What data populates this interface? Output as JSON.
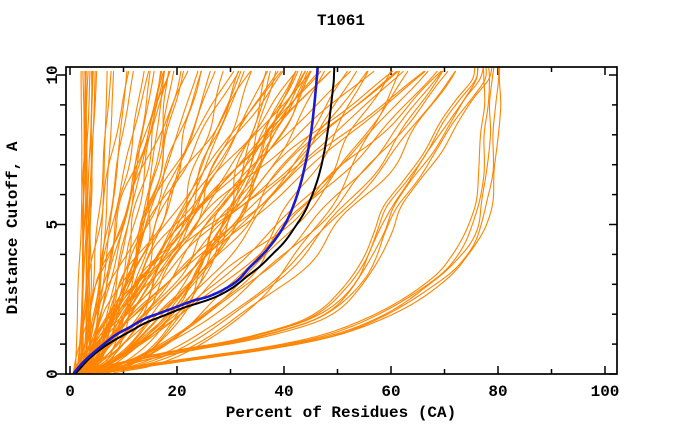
{
  "title": "T1061",
  "chart_data": {
    "type": "line",
    "title": "T1061",
    "xlabel": "Percent of Residues (CA)",
    "ylabel": "Distance Cutoff, A",
    "xlim": [
      0,
      102.3
    ],
    "ylim": [
      0,
      10.27
    ],
    "grid": false,
    "legend": "none",
    "x_axis": {
      "major_ticks": [
        0,
        20,
        40,
        60,
        80,
        100
      ],
      "major_labels": [
        "0",
        "20",
        "40",
        "60",
        "80",
        "100"
      ],
      "minor_ticks": [
        10,
        30,
        50,
        70,
        90
      ]
    },
    "y_axis": {
      "major_ticks": [
        0,
        5,
        10
      ],
      "major_labels": [
        "0",
        "5",
        "10"
      ],
      "minor_ticks": [
        1,
        2,
        3,
        4,
        6,
        7,
        8,
        9
      ]
    },
    "colors": {
      "ensemble": "#ff8400",
      "blue": "#1a1ad1",
      "black": "#000000",
      "frame": "#000000",
      "background": "#ffffff",
      "text": "#000000"
    },
    "series": [
      {
        "name": "black_highlight_model",
        "color": "#000000",
        "width": 2,
        "points": [
          [
            1.2,
            0.05
          ],
          [
            2.2,
            0.25
          ],
          [
            3.5,
            0.5
          ],
          [
            5.5,
            0.8
          ],
          [
            8,
            1.1
          ],
          [
            11,
            1.4
          ],
          [
            14,
            1.7
          ],
          [
            17.5,
            1.95
          ],
          [
            21,
            2.2
          ],
          [
            24.5,
            2.4
          ],
          [
            27.5,
            2.6
          ],
          [
            30.5,
            2.9
          ],
          [
            33,
            3.25
          ],
          [
            35.5,
            3.6
          ],
          [
            37.8,
            4.0
          ],
          [
            40,
            4.4
          ],
          [
            42,
            4.9
          ],
          [
            43.8,
            5.4
          ],
          [
            45.3,
            6.0
          ],
          [
            46.6,
            6.7
          ],
          [
            47.6,
            7.5
          ],
          [
            48.4,
            8.4
          ],
          [
            49,
            9.3
          ],
          [
            49.3,
            9.83
          ],
          [
            49.4,
            10.27
          ]
        ]
      },
      {
        "name": "blue_highlight_model",
        "color": "#1a1ad1",
        "width": 2.6,
        "points": [
          [
            0.8,
            0.05
          ],
          [
            1.5,
            0.2
          ],
          [
            2.5,
            0.4
          ],
          [
            4,
            0.65
          ],
          [
            6,
            0.95
          ],
          [
            8.5,
            1.3
          ],
          [
            11,
            1.55
          ],
          [
            14,
            1.85
          ],
          [
            17,
            2.05
          ],
          [
            20,
            2.25
          ],
          [
            23,
            2.45
          ],
          [
            26,
            2.6
          ],
          [
            29,
            2.85
          ],
          [
            31.5,
            3.15
          ],
          [
            33.5,
            3.55
          ],
          [
            35.5,
            3.9
          ],
          [
            37.5,
            4.3
          ],
          [
            39.5,
            4.8
          ],
          [
            41,
            5.3
          ],
          [
            42.3,
            5.9
          ],
          [
            43.3,
            6.5
          ],
          [
            44.2,
            7.2
          ],
          [
            45,
            8.0
          ],
          [
            45.6,
            8.9
          ],
          [
            46.1,
            9.83
          ],
          [
            46.3,
            10.27
          ]
        ]
      }
    ],
    "outlier_groups": [
      {
        "name": "mid_right_bundle",
        "count": 6,
        "offsets": [
          -0.6,
          0,
          0.5,
          1.1,
          1.8,
          2.6
        ],
        "base": [
          [
            3,
            0.05
          ],
          [
            8,
            0.3
          ],
          [
            15,
            0.6
          ],
          [
            22,
            0.85
          ],
          [
            30,
            1.1
          ],
          [
            38,
            1.45
          ],
          [
            44,
            1.8
          ],
          [
            48,
            2.2
          ],
          [
            51,
            2.7
          ],
          [
            53.5,
            3.3
          ],
          [
            55.5,
            4.0
          ],
          [
            57.5,
            4.8
          ],
          [
            59.5,
            5.6
          ],
          [
            63,
            6.5
          ],
          [
            66.5,
            7.4
          ],
          [
            70,
            8.4
          ],
          [
            73,
            9.2
          ],
          [
            75.5,
            9.83
          ],
          [
            76,
            10.27
          ]
        ]
      },
      {
        "name": "far_right_bundle",
        "count": 5,
        "offsets": [
          -0.8,
          0,
          0.7,
          1.6,
          2.3
        ],
        "base": [
          [
            4,
            0.05
          ],
          [
            10,
            0.2
          ],
          [
            18,
            0.4
          ],
          [
            26,
            0.6
          ],
          [
            34,
            0.8
          ],
          [
            42,
            1.05
          ],
          [
            48,
            1.3
          ],
          [
            53,
            1.6
          ],
          [
            58,
            2.0
          ],
          [
            62,
            2.4
          ],
          [
            66,
            2.9
          ],
          [
            69.5,
            3.4
          ],
          [
            72,
            3.9
          ],
          [
            74,
            4.4
          ],
          [
            75.5,
            5.0
          ],
          [
            76.5,
            5.8
          ],
          [
            77.2,
            6.8
          ],
          [
            77.7,
            8.0
          ],
          [
            78,
            9.0
          ],
          [
            78.2,
            9.83
          ],
          [
            78.3,
            10.27
          ]
        ]
      }
    ],
    "ensemble": {
      "name": "prediction_curves",
      "count": 95,
      "seed": 20061,
      "start_pct": [
        0.5,
        4.0
      ],
      "top_pct": [
        2,
        73
      ],
      "top_bias": 1.2,
      "exponent": [
        0.38,
        1.3
      ],
      "wobble": [
        0.2,
        1.4
      ]
    }
  }
}
